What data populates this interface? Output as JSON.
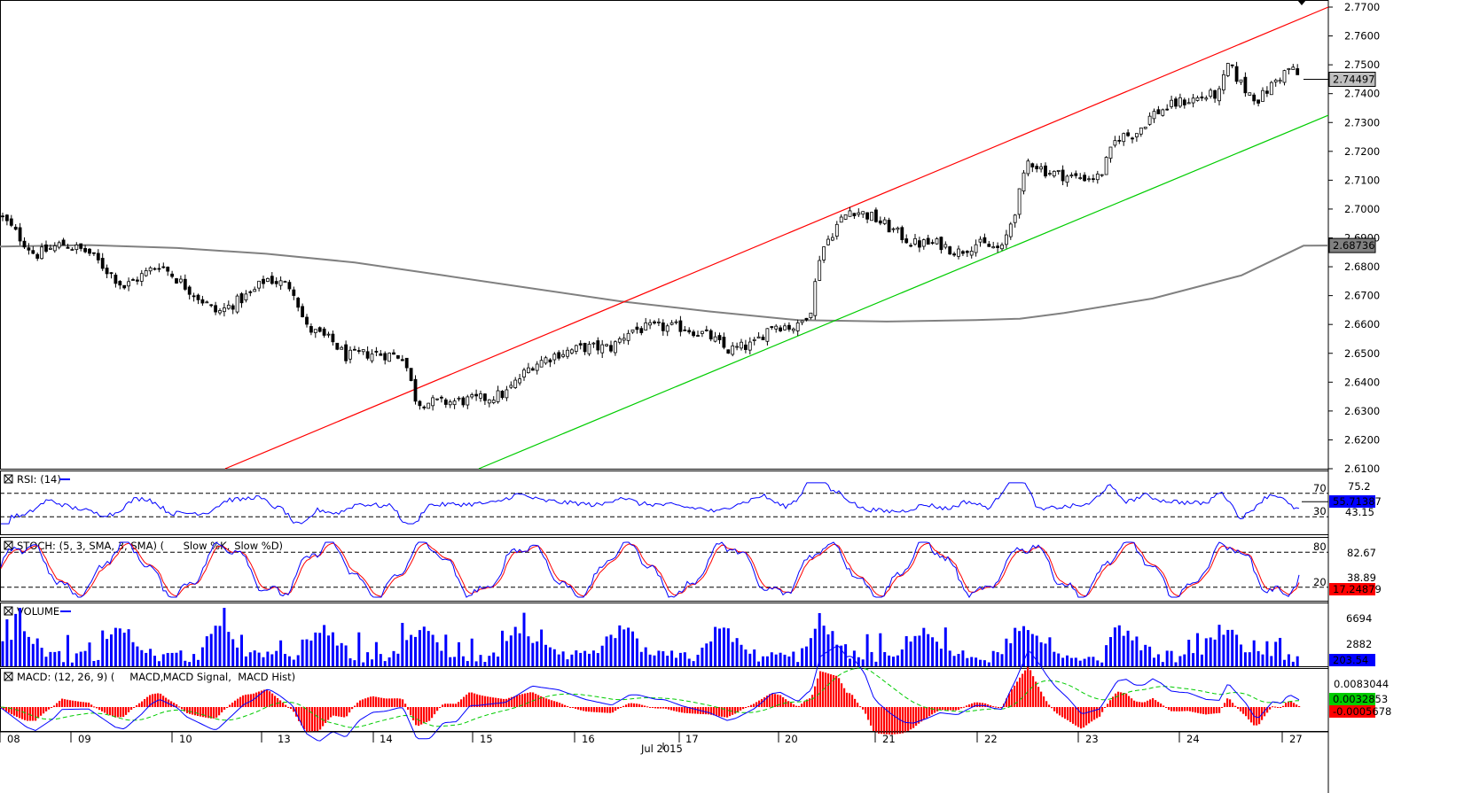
{
  "chart_data": {
    "type": "candlestick",
    "main": {
      "y_ticks": [
        2.77,
        2.76,
        2.75,
        2.74,
        2.73,
        2.72,
        2.71,
        2.7,
        2.69,
        2.68,
        2.67,
        2.66,
        2.65,
        2.64,
        2.63,
        2.62,
        2.61
      ],
      "ylim": [
        2.61,
        2.77
      ],
      "last_price_label": "2.74497",
      "last_price": 2.74497,
      "ma_label": "2.68736",
      "ma_value": 2.68736,
      "channel_upper": {
        "color": "#ff0000",
        "from": [
          0.17,
          2.61
        ],
        "to": [
          11.5,
          2.77
        ]
      },
      "channel_lower": {
        "color": "#00cc00",
        "from": [
          3.38,
          2.61
        ],
        "to": [
          11.5,
          2.7325
        ]
      },
      "ma_color": "#808080"
    },
    "x_axis": {
      "day_labels": [
        "08",
        "09",
        "10",
        "13",
        "14",
        "15",
        "16",
        "17",
        "20",
        "21",
        "22",
        "23",
        "24",
        "27"
      ],
      "month_label": "Jul 2015"
    },
    "rsi": {
      "title": "RSI: (14)",
      "levels": [
        "70",
        "30"
      ],
      "right_labels": [
        "75.2",
        "43.15"
      ],
      "current": "55.71387",
      "color": "#0000ff"
    },
    "stoch": {
      "title": "STOCH: (5, 3, SMA, 3, SMA)",
      "legend_k": "Slow %K",
      "legend_d": "Slow %D",
      "levels": [
        "80",
        "20"
      ],
      "right_labels": [
        "82.67",
        "38.89"
      ],
      "current": "17.24879",
      "k_color": "#0000ff",
      "d_color": "#ff0000"
    },
    "volume": {
      "title": "VOLUME",
      "right_labels": [
        "6694",
        "2882"
      ],
      "current": "203.54",
      "color": "#0000ff"
    },
    "macd": {
      "title": "MACD: (12, 26, 9)",
      "legend_macd": "MACD",
      "legend_signal": "MACD Signal",
      "legend_hist": "MACD Hist",
      "right_labels": [
        "0.0083044"
      ],
      "current_macd": "0.0032853",
      "current_hist": "-0.0005678",
      "macd_color": "#0000ff",
      "signal_color": "#00cc00",
      "hist_color": "#ff0000"
    }
  }
}
